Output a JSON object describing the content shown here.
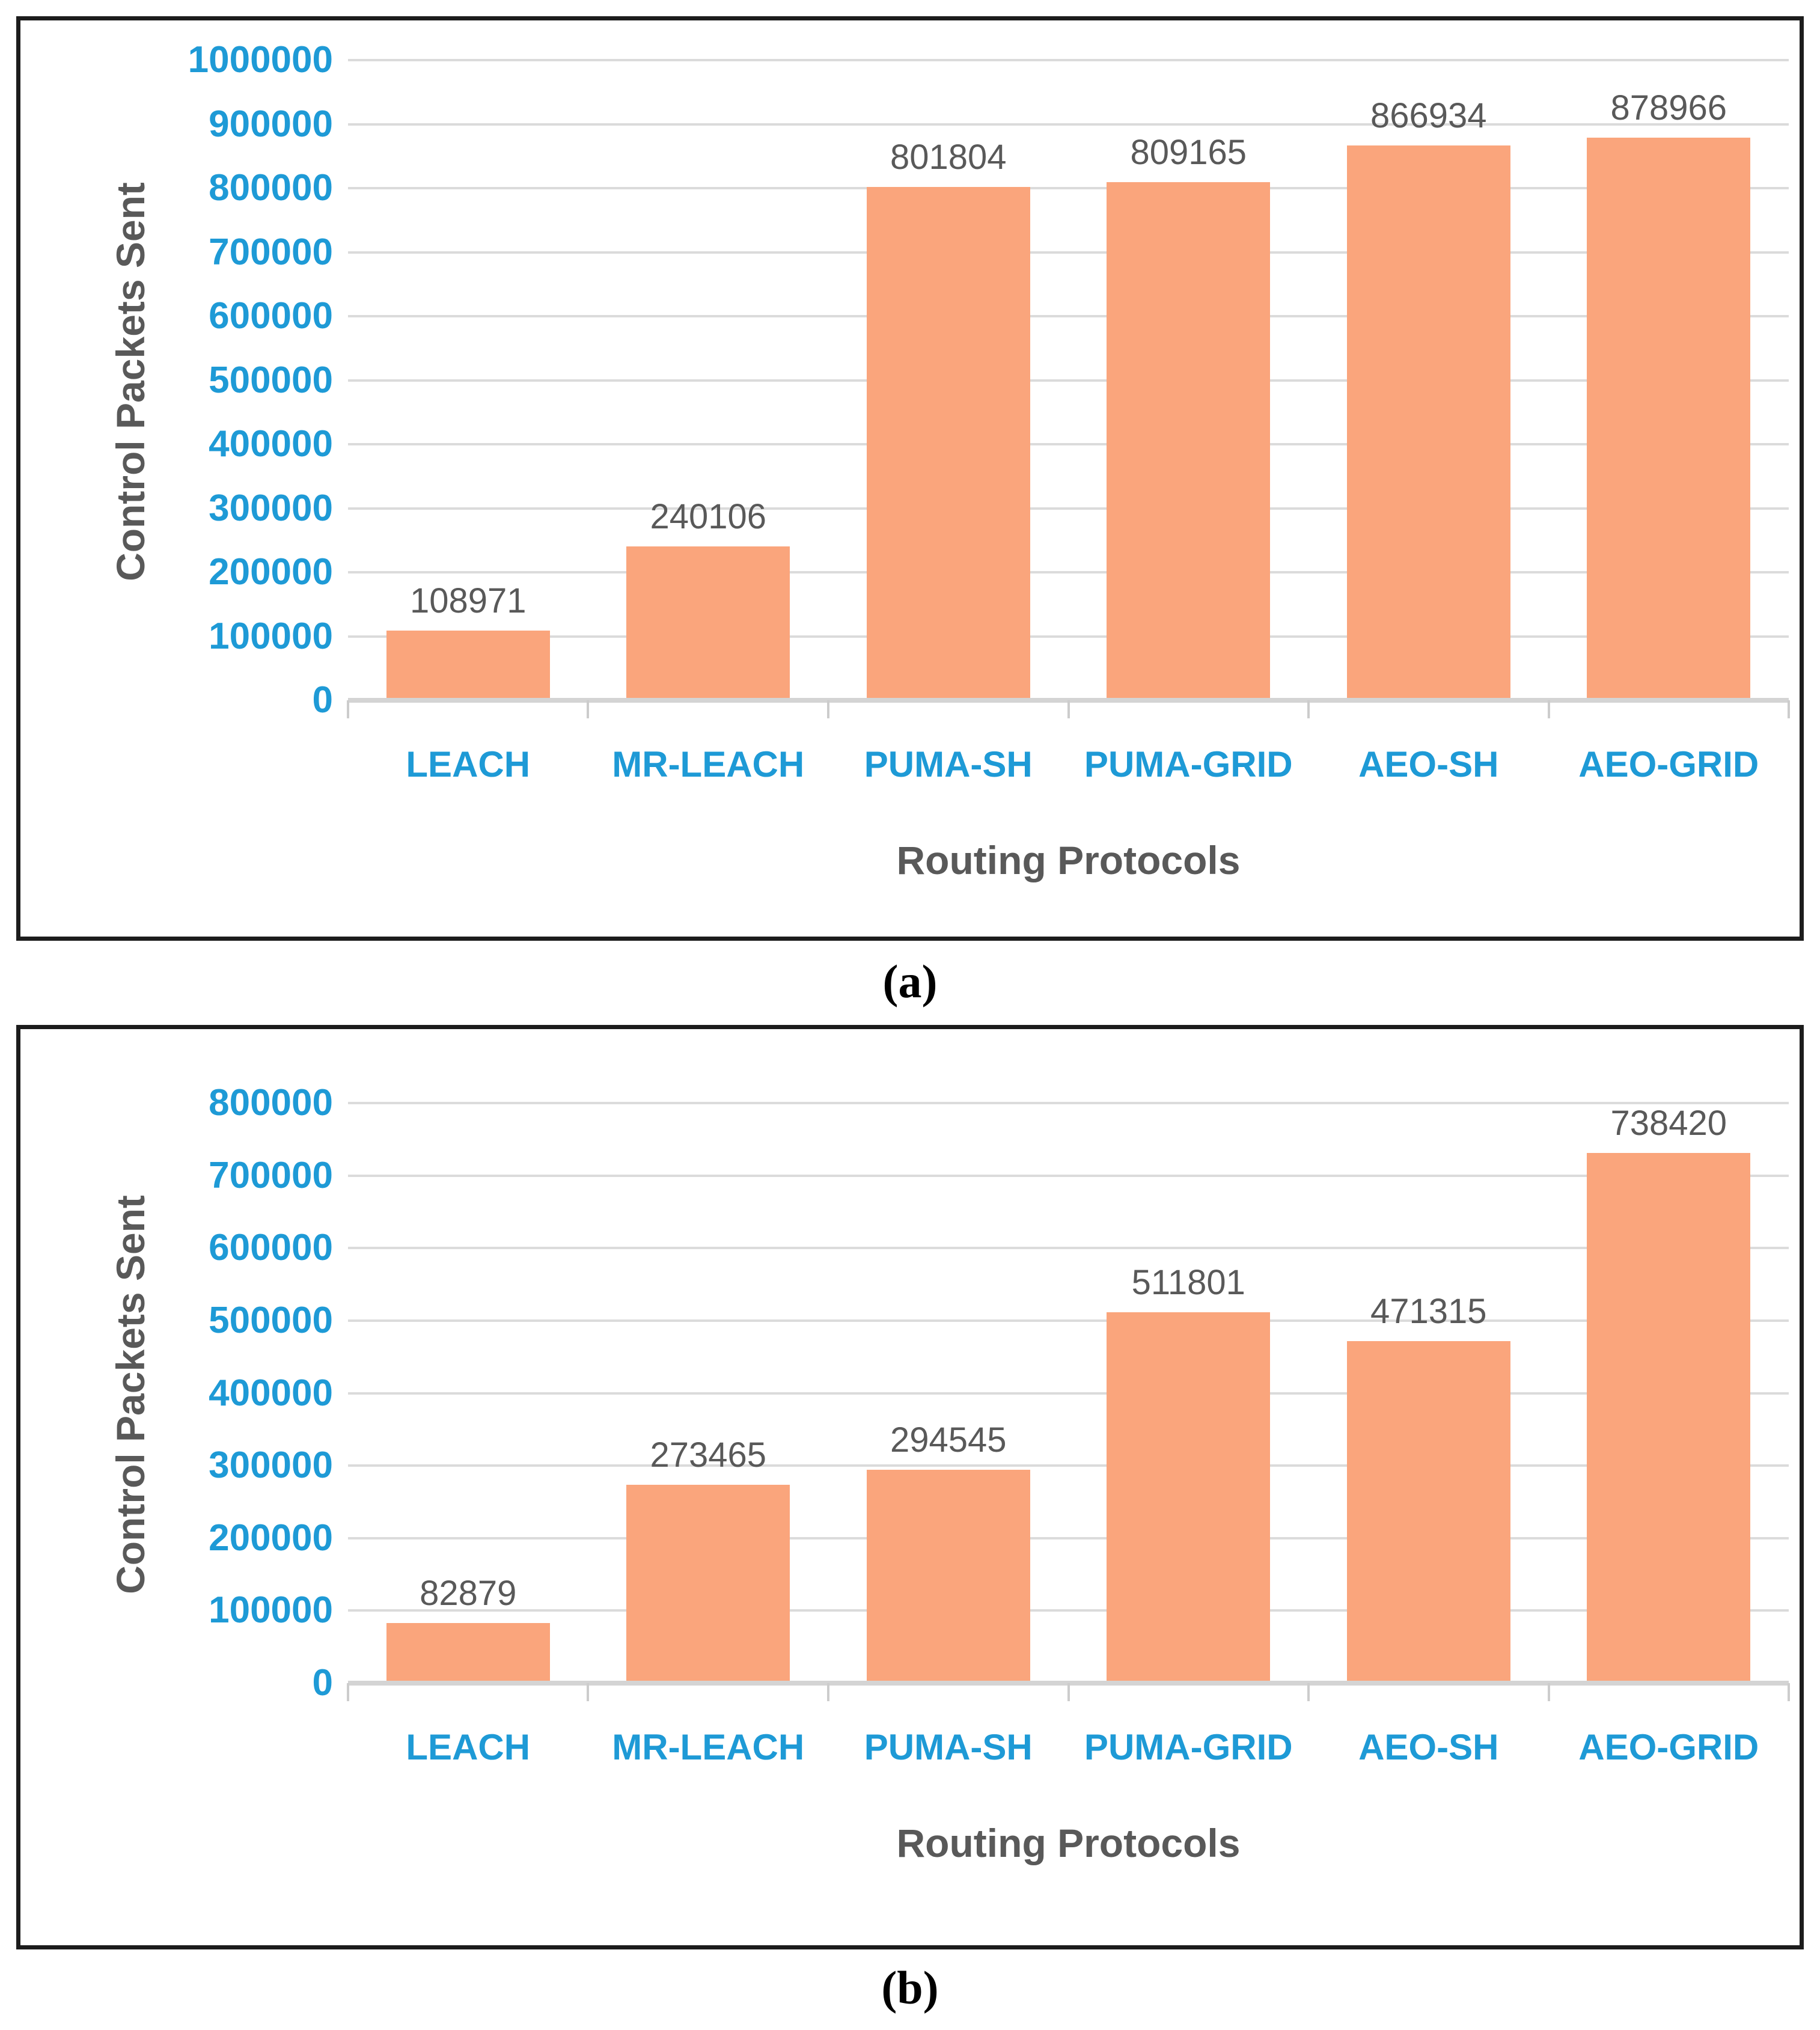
{
  "figure": {
    "captions": [
      "(a)",
      "(b)"
    ]
  },
  "colors": {
    "bar_fill": "#faa57c",
    "tick_label_blue": "#1e9ad6",
    "text_gray": "#595959",
    "gridline": "#dbdbdb",
    "frame_border": "#1c1c1c"
  },
  "chart_data": [
    {
      "type": "bar",
      "title": "",
      "categories": [
        "LEACH",
        "MR-LEACH",
        "PUMA-SH",
        "PUMA-GRID",
        "AEO-SH",
        "AEO-GRID"
      ],
      "values": [
        108971,
        240106,
        801804,
        809165,
        866934,
        878966
      ],
      "xlabel": "Routing Protocols",
      "ylabel": "Control Packets Sent",
      "ylim": [
        0,
        1000000
      ],
      "ytick_step": 100000,
      "yticks": [
        0,
        100000,
        200000,
        300000,
        400000,
        500000,
        600000,
        700000,
        800000,
        900000,
        1000000
      ],
      "grid": "horizontal",
      "legend": "none",
      "data_labels": [
        "108971",
        "240106",
        "801804",
        "809165",
        "866934",
        "878966"
      ],
      "ytick_labels": [
        "0",
        "100000",
        "200000",
        "300000",
        "400000",
        "500000",
        "600000",
        "700000",
        "800000",
        "900000",
        "1000000"
      ]
    },
    {
      "type": "bar",
      "title": "",
      "categories": [
        "LEACH",
        "MR-LEACH",
        "PUMA-SH",
        "PUMA-GRID",
        "AEO-SH",
        "AEO-GRID"
      ],
      "values": [
        82879,
        273465,
        294545,
        511801,
        471315,
        738420
      ],
      "xlabel": "Routing Protocols",
      "ylabel": "Control Packets Sent",
      "ylim": [
        0,
        800000
      ],
      "ytick_step": 100000,
      "yticks": [
        0,
        100000,
        200000,
        300000,
        400000,
        500000,
        600000,
        700000,
        800000
      ],
      "grid": "horizontal",
      "legend": "none",
      "data_labels": [
        "82879",
        "273465",
        "294545",
        "511801",
        "471315",
        "738420"
      ],
      "ytick_labels": [
        "0",
        "100000",
        "200000",
        "300000",
        "400000",
        "500000",
        "600000",
        "700000",
        "800000"
      ]
    }
  ]
}
